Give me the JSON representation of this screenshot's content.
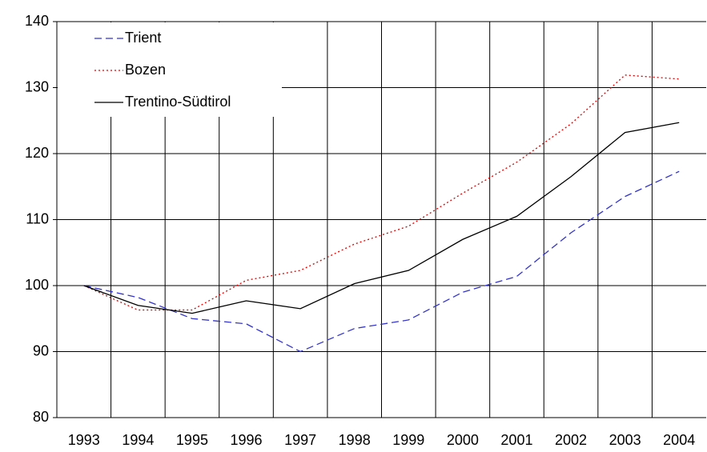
{
  "chart_data": {
    "type": "line",
    "categories": [
      "1993",
      "1994",
      "1995",
      "1996",
      "1997",
      "1998",
      "1999",
      "2000",
      "2001",
      "2002",
      "2003",
      "2004"
    ],
    "series": [
      {
        "name": "Trient",
        "color": "#3333cc",
        "style": "dashed",
        "values": [
          100,
          98.2,
          95,
          94.2,
          90,
          93.5,
          94.8,
          99,
          101.4,
          108,
          113.5,
          117.3
        ]
      },
      {
        "name": "Bozen",
        "color": "#e00000",
        "style": "dotted",
        "values": [
          100,
          96.3,
          96.3,
          100.8,
          102.3,
          106.3,
          109,
          114,
          118.7,
          124.5,
          131.9,
          131.3
        ]
      },
      {
        "name": "Trentino-Südtirol",
        "color": "#000000",
        "style": "solid",
        "values": [
          100,
          97,
          95.8,
          97.7,
          96.5,
          100.3,
          102.3,
          107,
          110.5,
          116.5,
          123.2,
          124.7
        ]
      }
    ],
    "ylim": [
      80,
      140
    ],
    "yticks": [
      80,
      90,
      100,
      110,
      120,
      130,
      140
    ],
    "grid": true,
    "legend": "upper left"
  }
}
